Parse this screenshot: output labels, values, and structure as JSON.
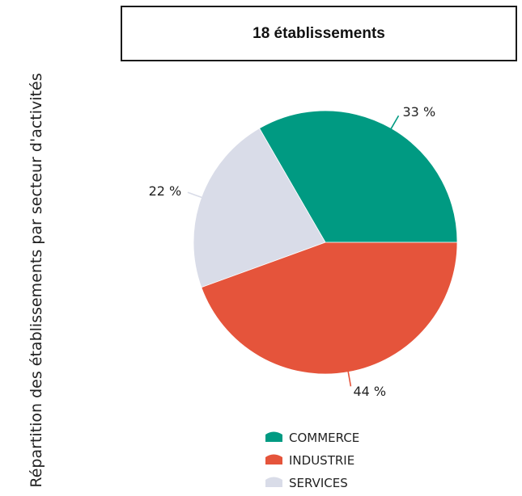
{
  "header": {
    "count_label": "18 établissements"
  },
  "side": {
    "ylabel": "Répartition des établissements par secteur d'activités"
  },
  "chart_data": {
    "type": "pie",
    "slices": [
      {
        "name": "COMMERCE",
        "value": 33,
        "label": "33 %",
        "color": "#009a82"
      },
      {
        "name": "SERVICES",
        "value": 22,
        "label": "22 %",
        "color": "#d9dce8"
      },
      {
        "name": "INDUSTRIE",
        "value": 44,
        "label": "44 %",
        "color": "#e5543b"
      }
    ],
    "legend": [
      "COMMERCE",
      "INDUSTRIE",
      "SERVICES"
    ],
    "legend_position": "bottom"
  }
}
